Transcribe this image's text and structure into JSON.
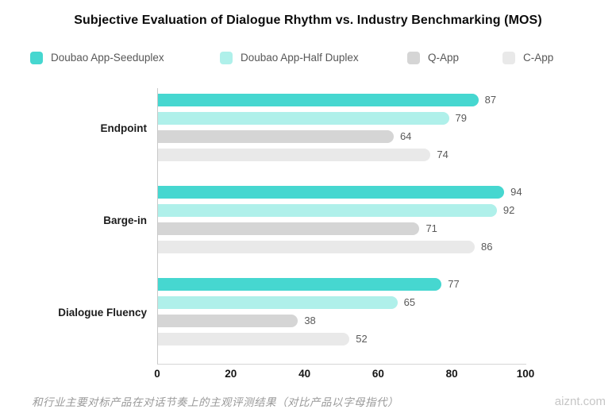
{
  "title": "Subjective Evaluation of Dialogue Rhythm vs. Industry Benchmarking (MOS)",
  "chart_data": {
    "type": "bar",
    "orientation": "horizontal",
    "title": "Subjective Evaluation of Dialogue Rhythm vs. Industry Benchmarking (MOS)",
    "categories": [
      "Endpoint",
      "Barge-in",
      "Dialogue Fluency"
    ],
    "series": [
      {
        "name": "Doubao App-Seeduplex",
        "color": "#46d7d0",
        "values": [
          87,
          94,
          77
        ]
      },
      {
        "name": "Doubao App-Half Duplex",
        "color": "#aff0ea",
        "values": [
          79,
          92,
          65
        ]
      },
      {
        "name": "Q-App",
        "color": "#d5d5d5",
        "values": [
          64,
          71,
          38
        ]
      },
      {
        "name": "C-App",
        "color": "#e9e9e9",
        "values": [
          74,
          86,
          52
        ]
      }
    ],
    "x_ticks": [
      0,
      20,
      40,
      60,
      80,
      100
    ],
    "xlim": [
      0,
      100
    ],
    "value_labels_shown": true,
    "grid": false,
    "legend_position": "top"
  },
  "footer": {
    "caption": "和行业主要对标产品在对话节奏上的主观评测结果（对比产品以字母指代）",
    "watermark": "aiznt.com"
  }
}
